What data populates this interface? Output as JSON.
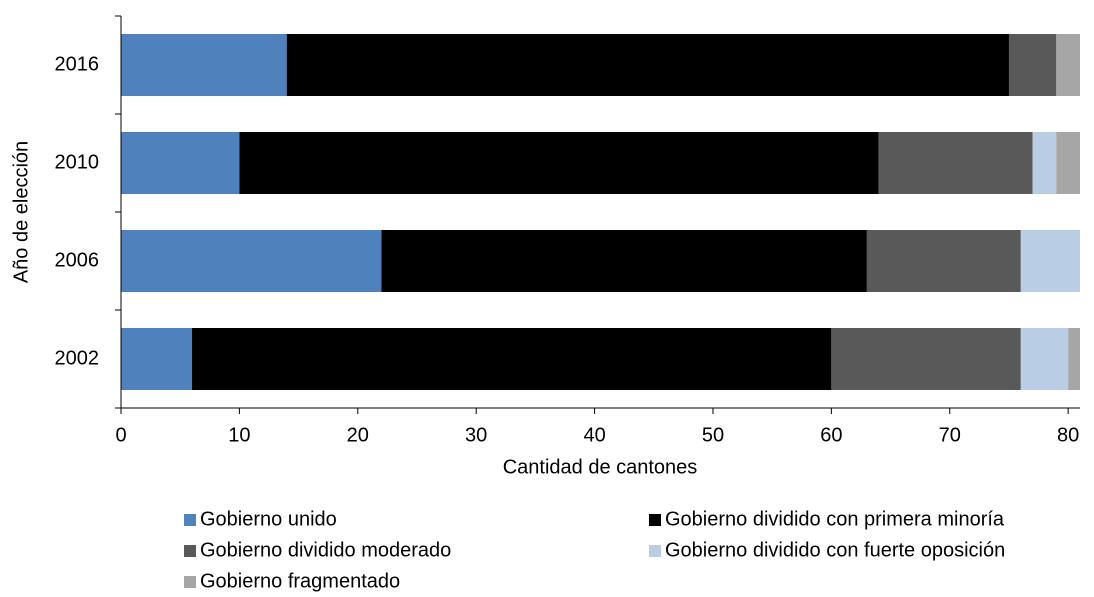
{
  "chart_data": {
    "type": "stacked-bar-horizontal",
    "x_label": "Cantidad de cantones",
    "y_label": "Año de elección",
    "categories": [
      "2002",
      "2006",
      "2010",
      "2016"
    ],
    "series": [
      {
        "name": "Gobierno unido",
        "color": "#4f81bd",
        "values": [
          6,
          22,
          10,
          14
        ]
      },
      {
        "name": "Gobierno dividido con primera minoría",
        "color": "#000000",
        "values": [
          54,
          41,
          54,
          61
        ]
      },
      {
        "name": "Gobierno dividido moderado",
        "color": "#595959",
        "values": [
          16,
          13,
          13,
          4
        ]
      },
      {
        "name": "Gobierno dividido con fuerte oposición",
        "color": "#b9cde5",
        "values": [
          4,
          5,
          2,
          0
        ]
      },
      {
        "name": "Gobierno fragmentado",
        "color": "#a6a6a6",
        "values": [
          1,
          0,
          2,
          2
        ]
      }
    ],
    "xlim": [
      0,
      81
    ],
    "xticks": [
      0,
      10,
      20,
      30,
      40,
      50,
      60,
      70,
      80
    ]
  }
}
